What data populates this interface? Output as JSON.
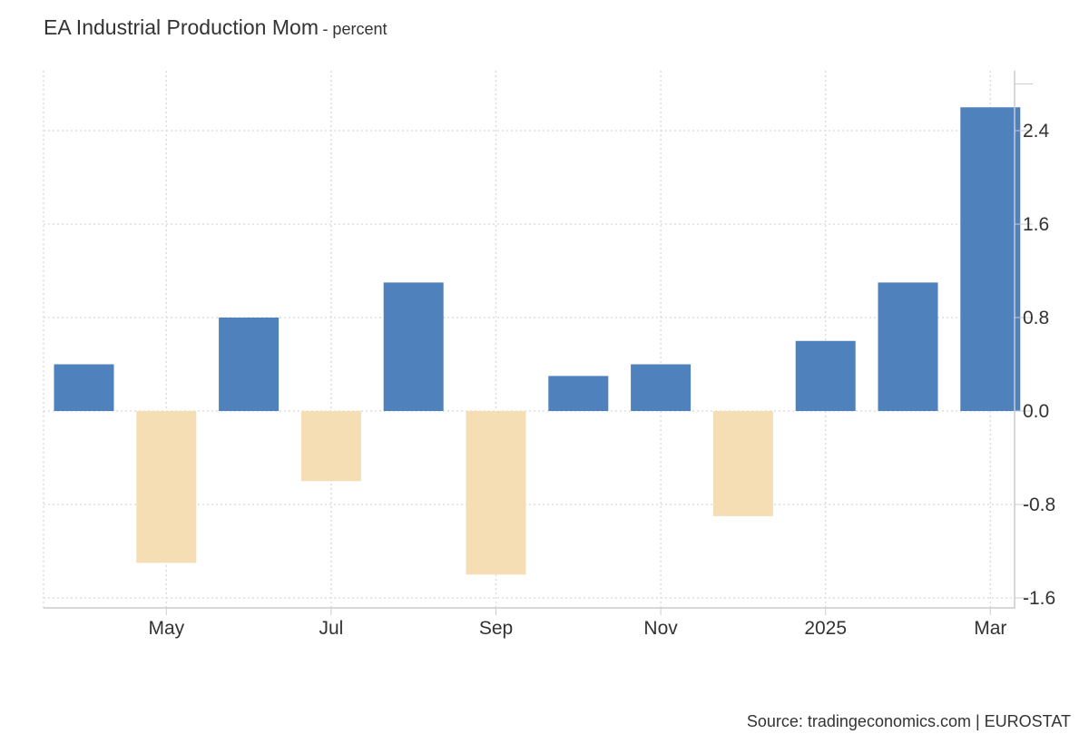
{
  "title": "EA Industrial Production Mom",
  "subtitle": "- percent",
  "source": "Source: tradingeconomics.com | EUROSTAT",
  "colors": {
    "positive": "#4f81bd",
    "negative": "#f5deb3",
    "grid": "#dddddd",
    "axis": "#cccccc"
  },
  "chart_data": {
    "type": "bar",
    "categories": [
      "Apr 2024",
      "May 2024",
      "Jun 2024",
      "Jul 2024",
      "Aug 2024",
      "Sep 2024",
      "Oct 2024",
      "Nov 2024",
      "Dec 2024",
      "Jan 2025",
      "Feb 2025",
      "Mar 2025"
    ],
    "values": [
      0.4,
      -1.3,
      0.8,
      -0.6,
      1.1,
      -1.4,
      0.3,
      0.4,
      -0.9,
      0.6,
      1.1,
      2.6
    ],
    "x_tick_labels": [
      {
        "category": "May 2024",
        "label": "May"
      },
      {
        "category": "Jul 2024",
        "label": "Jul"
      },
      {
        "category": "Sep 2024",
        "label": "Sep"
      },
      {
        "category": "Nov 2024",
        "label": "Nov"
      },
      {
        "category": "Jan 2025",
        "label": "2025"
      },
      {
        "category": "Mar 2025",
        "label": "Mar"
      }
    ],
    "y_ticks": [
      2.4,
      1.6,
      0.8,
      0.0,
      -0.8,
      -1.6
    ],
    "y_tick_labels": [
      "2.4",
      "1.6",
      "0.8",
      "0.0",
      "-0.8",
      "-1.6"
    ],
    "ylim": [
      -1.6,
      2.8
    ],
    "y_axis_side": "right",
    "grid": true,
    "xlabel": "",
    "ylabel": ""
  }
}
